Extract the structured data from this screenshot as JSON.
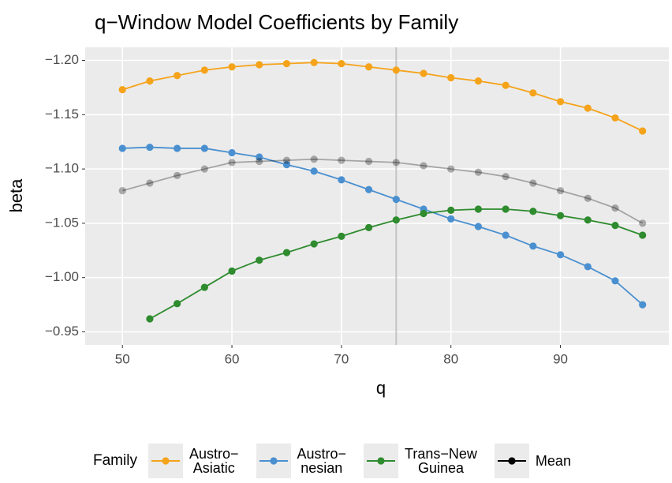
{
  "chart_data": {
    "type": "line",
    "title": "q−Window Model Coefficients by Family",
    "x_label": "q",
    "y_label": "beta",
    "x": [
      50,
      52.5,
      55,
      57.5,
      60,
      62.5,
      65,
      67.5,
      70,
      72.5,
      75,
      77.5,
      80,
      82.5,
      85,
      87.5,
      90,
      92.5,
      95,
      97.5
    ],
    "series": [
      {
        "name": "Austro−\nAsiatic",
        "color": "#f5a31a",
        "values": [
          -1.173,
          -1.181,
          -1.186,
          -1.191,
          -1.194,
          -1.196,
          -1.197,
          -1.198,
          -1.197,
          -1.194,
          -1.191,
          -1.188,
          -1.184,
          -1.181,
          -1.177,
          -1.17,
          -1.162,
          -1.156,
          -1.147,
          -1.135
        ]
      },
      {
        "name": "Austro−\nnesian",
        "color": "#4a90d0",
        "values": [
          -1.119,
          -1.12,
          -1.119,
          -1.119,
          -1.115,
          -1.111,
          -1.104,
          -1.098,
          -1.09,
          -1.081,
          -1.072,
          -1.063,
          -1.054,
          -1.047,
          -1.039,
          -1.029,
          -1.021,
          -1.01,
          -0.997,
          -0.975
        ]
      },
      {
        "name": "Trans−New\n Guinea",
        "color": "#2e8b2e",
        "values": [
          null,
          -0.962,
          -0.976,
          -0.991,
          -1.006,
          -1.016,
          -1.023,
          -1.031,
          -1.038,
          -1.046,
          -1.053,
          -1.059,
          -1.062,
          -1.063,
          -1.063,
          -1.061,
          -1.057,
          -1.053,
          -1.048,
          -1.039
        ]
      },
      {
        "name": "Mean",
        "color": "#000000",
        "opacity": 0.3,
        "values": [
          -1.08,
          -1.087,
          -1.094,
          -1.1,
          -1.106,
          -1.107,
          -1.108,
          -1.109,
          -1.108,
          -1.107,
          -1.106,
          -1.103,
          -1.1,
          -1.097,
          -1.093,
          -1.087,
          -1.08,
          -1.073,
          -1.064,
          -1.05
        ]
      }
    ],
    "xlim": [
      46.6,
      99.9
    ],
    "xticks": [
      50,
      60,
      70,
      80,
      90
    ],
    "ylim": [
      -0.938,
      -1.212
    ],
    "yticks": [
      {
        "value": -1.2,
        "label": "−1.20"
      },
      {
        "value": -1.15,
        "label": "−1.15"
      },
      {
        "value": -1.1,
        "label": "−1.10"
      },
      {
        "value": -1.05,
        "label": "−1.05"
      },
      {
        "value": -1.0,
        "label": "−1.00"
      },
      {
        "value": -0.95,
        "label": "−0.95"
      }
    ],
    "vline": {
      "x": 75,
      "color": "#c4c4c4"
    },
    "grid": true,
    "legend_title": "Family",
    "legend_position": "bottom"
  }
}
